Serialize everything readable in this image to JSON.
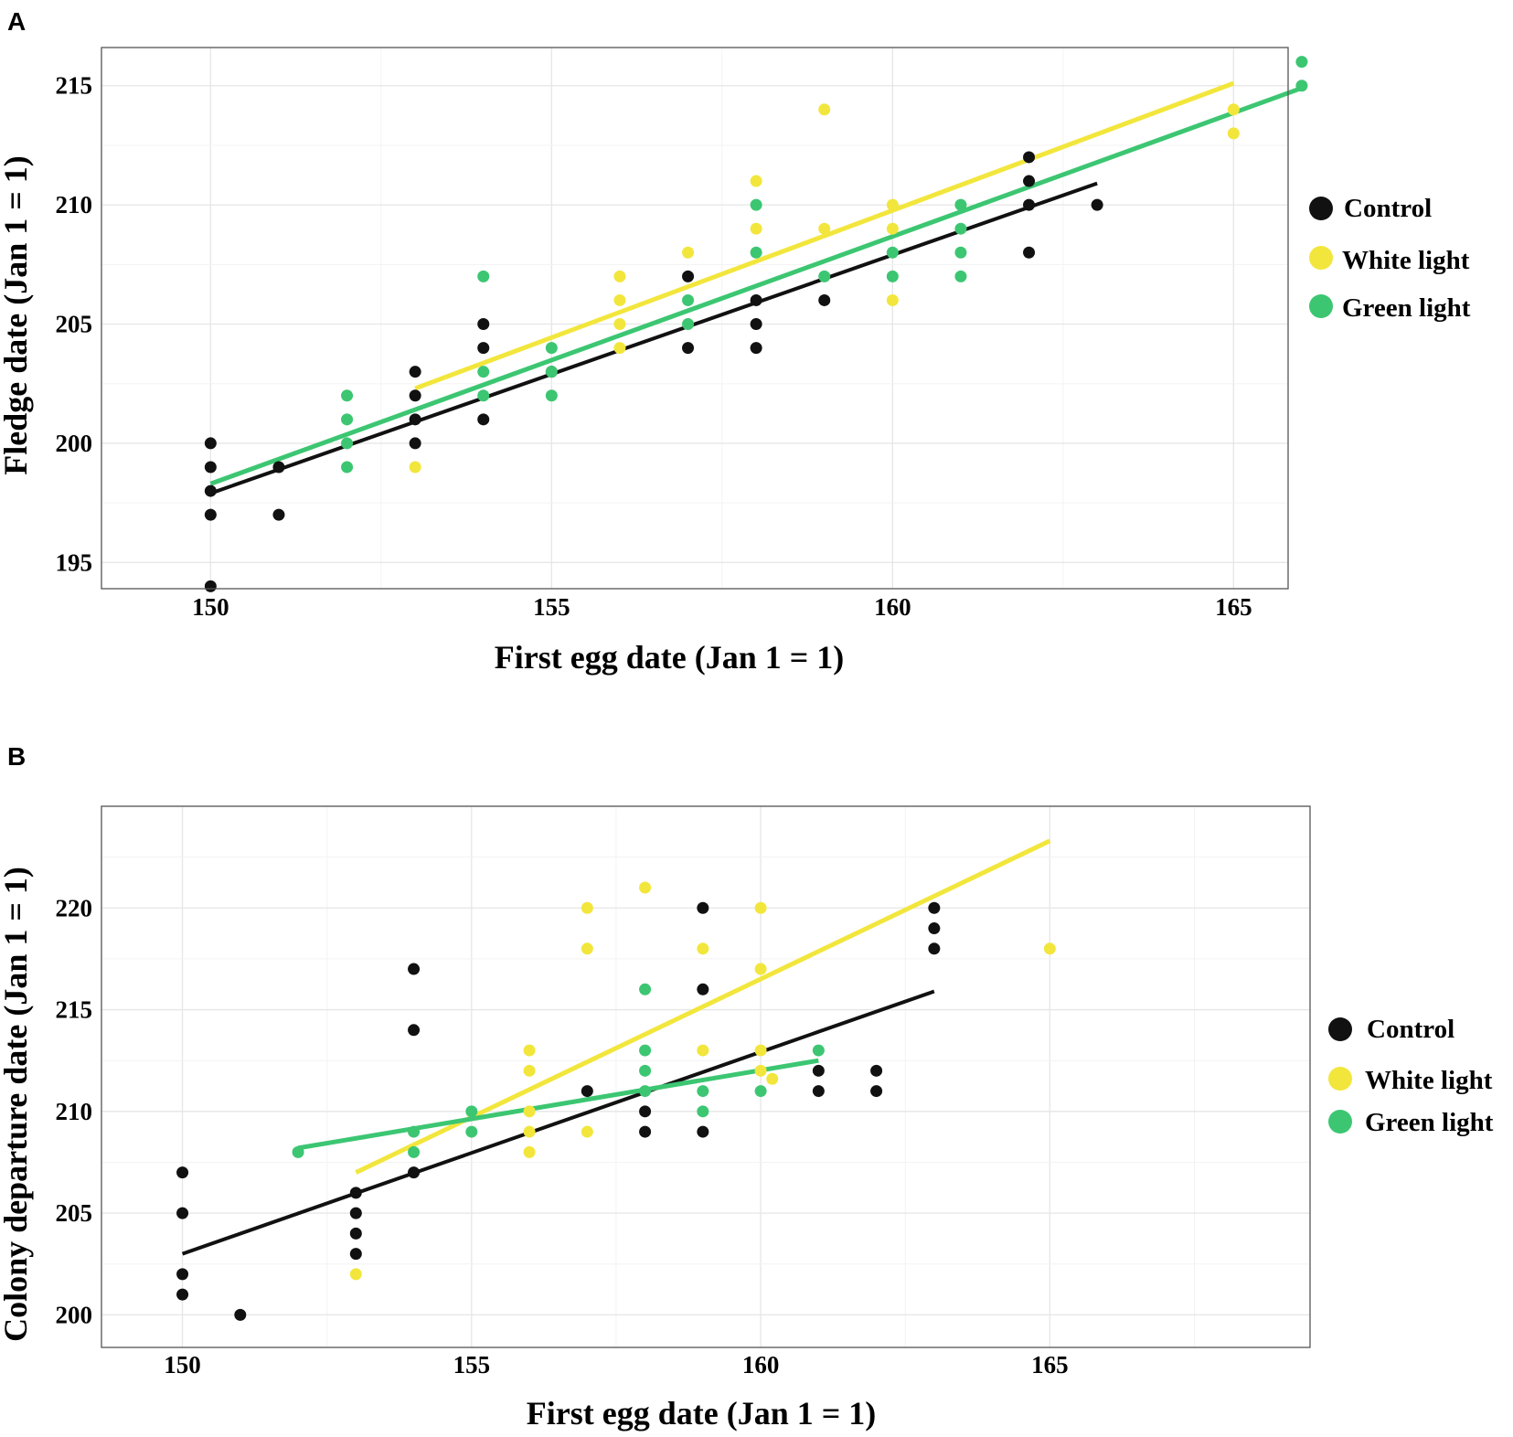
{
  "figure": {
    "colors": {
      "Control": "#111111",
      "White light": "#f2e63c",
      "Green light": "#3cc672"
    }
  },
  "chart_data": [
    {
      "panel": "A",
      "type": "scatter",
      "xlabel": "First egg date (Jan 1 = 1)",
      "ylabel": "Fledge date (Jan 1 = 1)",
      "xlim": [
        148.4,
        165.8
      ],
      "ylim": [
        193.9,
        216.6
      ],
      "xticks": [
        150,
        155,
        160,
        165
      ],
      "yticks": [
        195,
        200,
        205,
        210,
        215
      ],
      "legend": [
        "Control",
        "White light",
        "Green light"
      ],
      "series": [
        {
          "name": "Control",
          "points": [
            [
              150,
              194
            ],
            [
              150,
              197
            ],
            [
              150,
              198
            ],
            [
              150,
              199
            ],
            [
              150,
              200
            ],
            [
              151,
              197
            ],
            [
              151,
              199
            ],
            [
              153,
              200
            ],
            [
              153,
              201
            ],
            [
              153,
              202
            ],
            [
              153,
              203
            ],
            [
              154,
              201
            ],
            [
              154,
              204
            ],
            [
              154,
              205
            ],
            [
              155,
              203
            ],
            [
              157,
              204
            ],
            [
              157,
              207
            ],
            [
              158,
              204
            ],
            [
              158,
              205
            ],
            [
              158,
              206
            ],
            [
              159,
              206
            ],
            [
              162,
              208
            ],
            [
              162,
              210
            ],
            [
              162,
              211
            ],
            [
              162,
              212
            ],
            [
              163,
              210
            ]
          ],
          "fit": [
            [
              150,
              197.9
            ],
            [
              163,
              210.9
            ]
          ]
        },
        {
          "name": "White light",
          "points": [
            [
              153,
              199
            ],
            [
              156,
              204
            ],
            [
              156,
              205
            ],
            [
              156,
              206
            ],
            [
              156,
              207
            ],
            [
              157,
              208
            ],
            [
              158,
              209
            ],
            [
              158,
              211
            ],
            [
              159,
              209
            ],
            [
              159,
              214
            ],
            [
              160,
              206
            ],
            [
              160,
              209
            ],
            [
              160,
              210
            ],
            [
              165,
              213
            ],
            [
              165,
              214
            ]
          ],
          "fit": [
            [
              153,
              202.3
            ],
            [
              165,
              215.1
            ]
          ]
        },
        {
          "name": "Green light",
          "points": [
            [
              152,
              199
            ],
            [
              152,
              200
            ],
            [
              152,
              201
            ],
            [
              152,
              202
            ],
            [
              154,
              202
            ],
            [
              154,
              203
            ],
            [
              154,
              207
            ],
            [
              155,
              202
            ],
            [
              155,
              203
            ],
            [
              155,
              204
            ],
            [
              157,
              205
            ],
            [
              157,
              206
            ],
            [
              158,
              208
            ],
            [
              158,
              210
            ],
            [
              159,
              207
            ],
            [
              160,
              207
            ],
            [
              160,
              208
            ],
            [
              161,
              207
            ],
            [
              161,
              208
            ],
            [
              161,
              209
            ],
            [
              161,
              210
            ],
            [
              166,
              215
            ],
            [
              166,
              216
            ]
          ],
          "fit": [
            [
              150,
              198.3
            ],
            [
              166,
              214.9
            ]
          ]
        }
      ]
    },
    {
      "panel": "B",
      "type": "scatter",
      "xlabel": "First egg date (Jan 1 = 1)",
      "ylabel": "Colony departure date (Jan 1 = 1)",
      "xlim": [
        148.6,
        169.5
      ],
      "ylim": [
        198.4,
        225.0
      ],
      "xticks": [
        150,
        155,
        160,
        165
      ],
      "yticks": [
        200,
        205,
        210,
        215,
        220
      ],
      "legend": [
        "Control",
        "White light",
        "Green light"
      ],
      "series": [
        {
          "name": "Control",
          "points": [
            [
              150,
              201
            ],
            [
              150,
              202
            ],
            [
              150,
              205
            ],
            [
              150,
              207
            ],
            [
              151,
              200
            ],
            [
              153,
              203
            ],
            [
              153,
              204
            ],
            [
              153,
              205
            ],
            [
              153,
              206
            ],
            [
              154,
              207
            ],
            [
              154,
              214
            ],
            [
              154,
              217
            ],
            [
              157,
              211
            ],
            [
              158,
              209
            ],
            [
              158,
              210
            ],
            [
              159,
              209
            ],
            [
              159,
              216
            ],
            [
              159,
              220
            ],
            [
              161,
              211
            ],
            [
              161,
              212
            ],
            [
              162,
              211
            ],
            [
              162,
              212
            ],
            [
              163,
              218
            ],
            [
              163,
              219
            ],
            [
              163,
              220
            ]
          ],
          "fit": [
            [
              150,
              203
            ],
            [
              163,
              215.9
            ]
          ]
        },
        {
          "name": "White light",
          "points": [
            [
              153,
              202
            ],
            [
              156,
              208
            ],
            [
              156,
              209
            ],
            [
              156,
              210
            ],
            [
              156,
              212
            ],
            [
              156,
              213
            ],
            [
              157,
              209
            ],
            [
              157,
              218
            ],
            [
              157,
              220
            ],
            [
              158,
              221
            ],
            [
              159,
              213
            ],
            [
              159,
              218
            ],
            [
              160,
              212
            ],
            [
              160,
              213
            ],
            [
              160,
              217
            ],
            [
              160,
              220
            ],
            [
              160.2,
              211.6
            ],
            [
              165,
              218
            ]
          ],
          "fit": [
            [
              153,
              207
            ],
            [
              165,
              223.3
            ]
          ]
        },
        {
          "name": "Green light",
          "points": [
            [
              152,
              208
            ],
            [
              154,
              208
            ],
            [
              154,
              209
            ],
            [
              155,
              209
            ],
            [
              155,
              210
            ],
            [
              158,
              211
            ],
            [
              158,
              212
            ],
            [
              158,
              213
            ],
            [
              158,
              216
            ],
            [
              159,
              210
            ],
            [
              159,
              211
            ],
            [
              160,
              211
            ],
            [
              161,
              213
            ]
          ],
          "fit": [
            [
              152,
              208.2
            ],
            [
              161,
              212.5
            ]
          ]
        }
      ]
    }
  ]
}
